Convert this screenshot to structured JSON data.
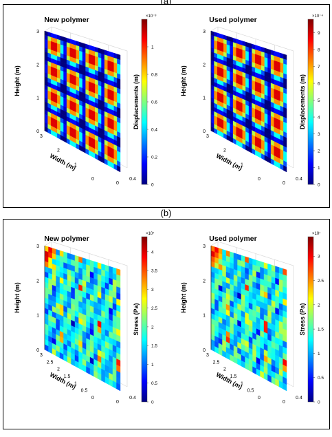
{
  "panels": [
    {
      "label": "(a)"
    },
    {
      "label": "(b)"
    }
  ],
  "colormap": [
    "#00007f",
    "#0000ff",
    "#007fff",
    "#00ffff",
    "#7fff7f",
    "#ffff00",
    "#ff7f00",
    "#ff0000",
    "#7f0000"
  ],
  "chart_data": [
    {
      "type": "heatmap",
      "panel": "a",
      "title": "New polymer",
      "xlabel": "Width (m)",
      "ylabel": "Height (m)",
      "colorbar_label": "Displacements (m)",
      "colorbar_exponent": "×10⁻³",
      "colorbar_ticks": [
        0,
        0.2,
        0.4,
        0.6,
        0.8,
        1
      ],
      "colorbar_range": [
        0,
        1.2
      ],
      "y_ticks": [
        0,
        1,
        2,
        3
      ],
      "width_ticks": [
        3,
        2,
        1,
        0
      ],
      "depth_ticks": [
        0,
        0.4
      ]
    },
    {
      "type": "heatmap",
      "panel": "a",
      "title": "Used polymer",
      "xlabel": "Width (m)",
      "ylabel": "Height (m)",
      "colorbar_label": "Displacements (m)",
      "colorbar_exponent": "×10⁻⁴",
      "colorbar_ticks": [
        0,
        1,
        2,
        3,
        4,
        5,
        6,
        7,
        8,
        9
      ],
      "colorbar_range": [
        0,
        9.8
      ],
      "y_ticks": [
        0,
        1,
        2,
        3
      ],
      "width_ticks": [
        3,
        2,
        1,
        0
      ],
      "depth_ticks": [
        0,
        0.4
      ]
    },
    {
      "type": "heatmap",
      "panel": "b",
      "title": "New polymer",
      "xlabel": "Width (m)",
      "ylabel": "Height (m)",
      "colorbar_label": "Stress (Pa)",
      "colorbar_exponent": "×10⁷",
      "colorbar_ticks": [
        0,
        0.5,
        1,
        1.5,
        2,
        2.5,
        3,
        3.5,
        4
      ],
      "colorbar_range": [
        0,
        4.4
      ],
      "y_ticks": [
        0,
        1,
        2,
        3
      ],
      "width_ticks": [
        3,
        2.5,
        2,
        1.5,
        1,
        0.5,
        0
      ],
      "depth_ticks": [
        0,
        0.4
      ]
    },
    {
      "type": "heatmap",
      "panel": "b",
      "title": "Used polymer",
      "xlabel": "Width (m)",
      "ylabel": "Height (m)",
      "colorbar_label": "Stress (Pa)",
      "colorbar_exponent": "×10⁷",
      "colorbar_ticks": [
        0,
        0.5,
        1,
        1.5,
        2,
        2.5,
        3
      ],
      "colorbar_range": [
        0,
        3.4
      ],
      "y_ticks": [
        0,
        1,
        2,
        3
      ],
      "width_ticks": [
        3,
        2.5,
        2,
        1.5,
        1,
        0.5,
        0
      ],
      "depth_ticks": [
        0,
        0.4
      ]
    }
  ]
}
